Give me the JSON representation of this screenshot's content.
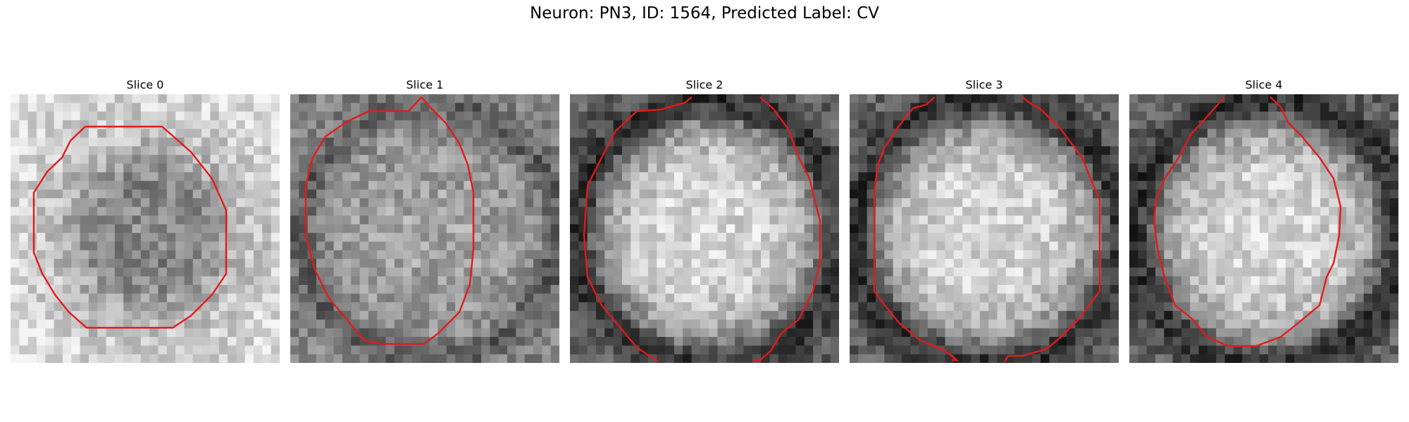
{
  "figure": {
    "title": "Neuron: PN3, ID: 1564, Predicted Label: CV"
  },
  "panels": [
    {
      "title": "Slice 0",
      "brightness": "dark-center",
      "contour_color": "#e41a1c"
    },
    {
      "title": "Slice 1",
      "brightness": "mixed",
      "contour_color": "#e41a1c"
    },
    {
      "title": "Slice 2",
      "brightness": "bright-center",
      "contour_color": "#e41a1c"
    },
    {
      "title": "Slice 3",
      "brightness": "bright-center",
      "contour_color": "#e41a1c"
    },
    {
      "title": "Slice 4",
      "brightness": "bright-center",
      "contour_color": "#e41a1c"
    }
  ],
  "colors": {
    "contour": "#e41a1c",
    "colormap": "grayscale"
  }
}
